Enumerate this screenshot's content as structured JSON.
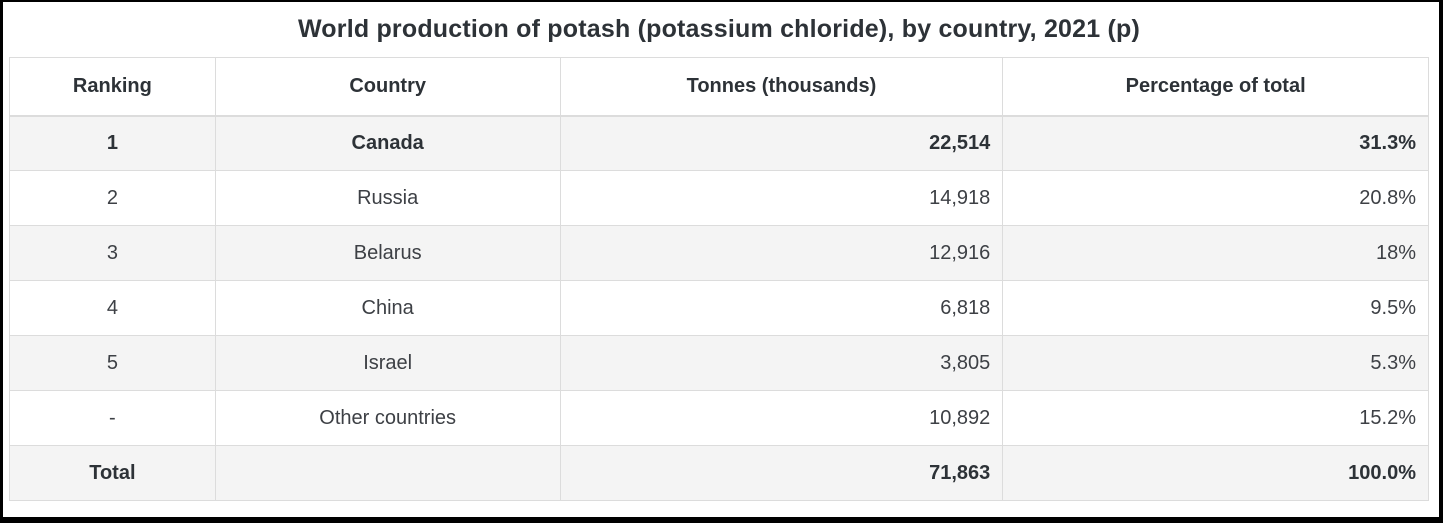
{
  "chart_data": {
    "type": "table",
    "title": "World production of potash (potassium chloride), by country, 2021 (p)",
    "columns": [
      "Ranking",
      "Country",
      "Tonnes (thousands)",
      "Percentage of total"
    ],
    "rows": [
      [
        "1",
        "Canada",
        "22,514",
        "31.3%"
      ],
      [
        "2",
        "Russia",
        "14,918",
        "20.8%"
      ],
      [
        "3",
        "Belarus",
        "12,916",
        "18%"
      ],
      [
        "4",
        "China",
        "6,818",
        "9.5%"
      ],
      [
        "5",
        "Israel",
        "3,805",
        "5.3%"
      ],
      [
        "-",
        "Other countries",
        "10,892",
        "15.2%"
      ],
      [
        "Total",
        "",
        "71,863",
        "100.0%"
      ]
    ],
    "bold_row_indices": [
      0,
      6
    ],
    "column_alignments": [
      "center",
      "center",
      "right",
      "right"
    ],
    "tonnes_thousands": {
      "Canada": 22514,
      "Russia": 14918,
      "Belarus": 12916,
      "China": 6818,
      "Israel": 3805,
      "Other countries": 10892,
      "Total": 71863
    },
    "percentage_of_total": {
      "Canada": 31.3,
      "Russia": 20.8,
      "Belarus": 18,
      "China": 9.5,
      "Israel": 5.3,
      "Other countries": 15.2,
      "Total": 100.0
    }
  },
  "colors": {
    "stripe_background": "#f4f4f4",
    "cell_border": "#dcdcdc",
    "body_text": "#3d4045",
    "emphasis_text": "#2d3237",
    "outer_frame": "#000000"
  }
}
